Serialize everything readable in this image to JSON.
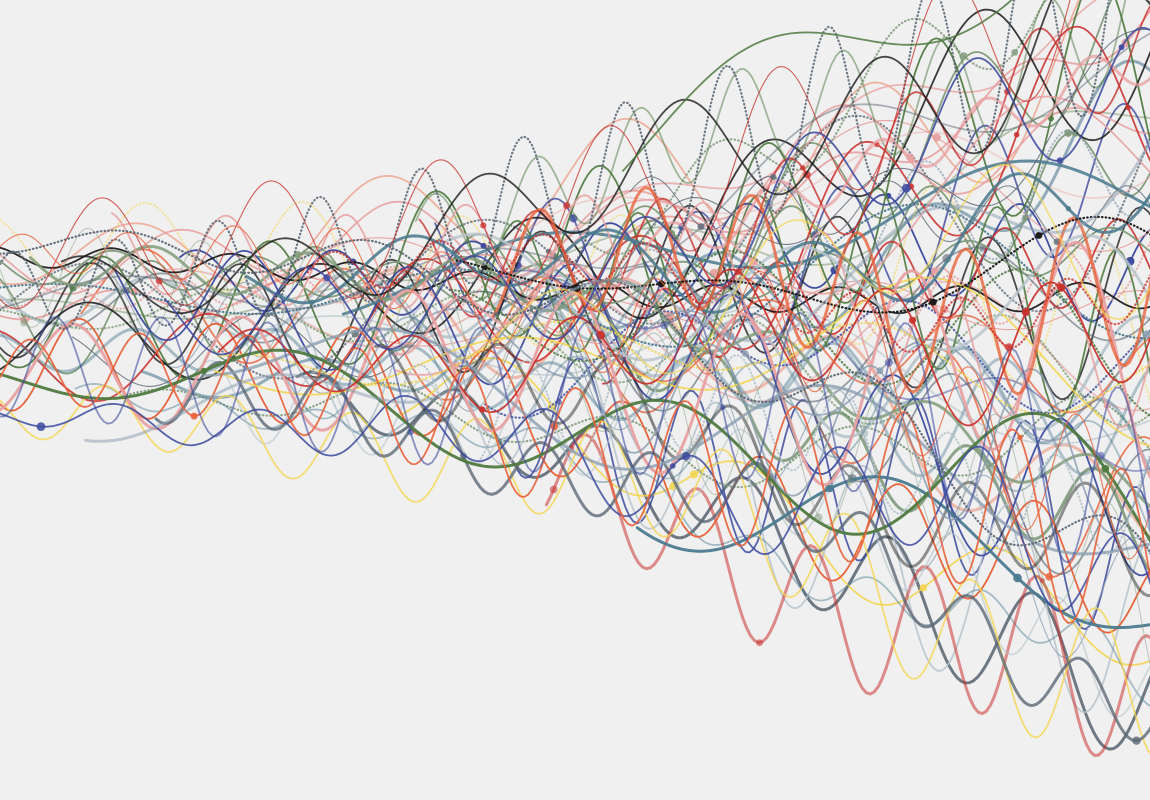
{
  "artwork": {
    "background": "#f0f0f0",
    "palette": [
      "#4b7a8f",
      "#3d4a9e",
      "#e8623a",
      "#c9302c",
      "#f4d44d",
      "#4e7a3f",
      "#1a1a1a",
      "#5a6673",
      "#8a9db0",
      "#7f9a7a",
      "#e8a0a0",
      "#b7c4cc"
    ]
  }
}
